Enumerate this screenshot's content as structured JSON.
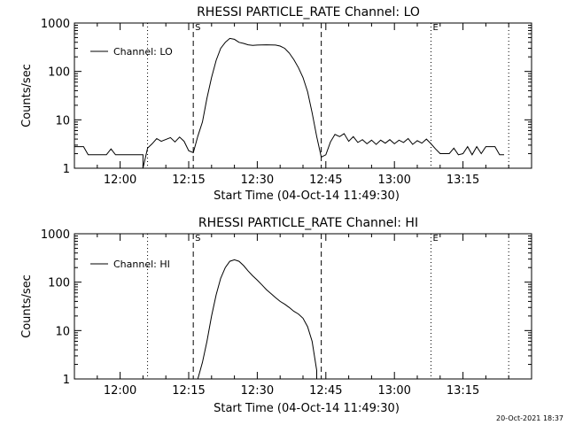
{
  "chart_data": [
    {
      "type": "line",
      "title": "RHESSI PARTICLE_RATE Channel: LO",
      "xlabel": "Start Time (04-Oct-14 11:49:30)",
      "ylabel": "Counts/sec",
      "y_scale": "log",
      "ylim": [
        1,
        1000
      ],
      "xlim": [
        "11:50",
        "13:30"
      ],
      "x_ticks": [
        "12:00",
        "12:15",
        "12:30",
        "12:45",
        "13:00",
        "13:15"
      ],
      "y_ticks": [
        "1",
        "10",
        "100",
        "1000"
      ],
      "legend": "Channel: LO",
      "legend_position": "upper-left",
      "markers": [
        {
          "time": "12:06",
          "style": "dotted",
          "label": ""
        },
        {
          "time": "12:16",
          "style": "dashed",
          "label": "S"
        },
        {
          "time": "12:44",
          "style": "dashed",
          "label": ""
        },
        {
          "time": "13:08",
          "style": "dotted",
          "label": "E"
        },
        {
          "time": "13:25",
          "style": "dotted",
          "label": ""
        }
      ],
      "series": [
        {
          "name": "Channel: LO",
          "points": [
            [
              "11:50",
              2.8
            ],
            [
              "11:52",
              2.8
            ],
            [
              "11:53",
              1.9
            ],
            [
              "11:54",
              1.9
            ],
            [
              "11:57",
              1.9
            ],
            [
              "11:58",
              2.5
            ],
            [
              "11:59",
              1.9
            ],
            [
              "12:05",
              1.9
            ],
            [
              "12:05",
              0.9
            ],
            [
              "12:06",
              2.6
            ],
            [
              "12:07",
              3.2
            ],
            [
              "12:08",
              4.1
            ],
            [
              "12:09",
              3.6
            ],
            [
              "12:11",
              4.3
            ],
            [
              "12:12",
              3.5
            ],
            [
              "12:13",
              4.4
            ],
            [
              "12:14",
              3.6
            ],
            [
              "12:15",
              2.3
            ],
            [
              "12:16",
              2.1
            ],
            [
              "12:17",
              4.6
            ],
            [
              "12:18",
              9
            ],
            [
              "12:19",
              28
            ],
            [
              "12:20",
              75
            ],
            [
              "12:21",
              170
            ],
            [
              "12:22",
              300
            ],
            [
              "12:23",
              400
            ],
            [
              "12:24",
              480
            ],
            [
              "12:25",
              460
            ],
            [
              "12:26",
              400
            ],
            [
              "12:27",
              380
            ],
            [
              "12:28",
              355
            ],
            [
              "12:29",
              345
            ],
            [
              "12:30",
              350
            ],
            [
              "12:32",
              355
            ],
            [
              "12:34",
              350
            ],
            [
              "12:35",
              335
            ],
            [
              "12:36",
              300
            ],
            [
              "12:37",
              240
            ],
            [
              "12:38",
              175
            ],
            [
              "12:39",
              120
            ],
            [
              "12:40",
              75
            ],
            [
              "12:41",
              38
            ],
            [
              "12:42",
              14
            ],
            [
              "12:43",
              4.5
            ],
            [
              "12:44",
              1.7
            ],
            [
              "12:45",
              1.9
            ],
            [
              "12:46",
              3.5
            ],
            [
              "12:47",
              5
            ],
            [
              "12:48",
              4.5
            ],
            [
              "12:49",
              5.2
            ],
            [
              "12:50",
              3.6
            ],
            [
              "12:51",
              4.5
            ],
            [
              "12:52",
              3.4
            ],
            [
              "12:53",
              3.9
            ],
            [
              "12:54",
              3.2
            ],
            [
              "12:55",
              3.8
            ],
            [
              "12:56",
              3.1
            ],
            [
              "12:57",
              3.8
            ],
            [
              "12:58",
              3.3
            ],
            [
              "12:59",
              3.9
            ],
            [
              "13:00",
              3.2
            ],
            [
              "13:01",
              3.8
            ],
            [
              "13:02",
              3.4
            ],
            [
              "13:03",
              4.1
            ],
            [
              "13:04",
              3.1
            ],
            [
              "13:05",
              3.7
            ],
            [
              "13:06",
              3.3
            ],
            [
              "13:07",
              4.0
            ],
            [
              "13:08",
              3.2
            ],
            [
              "13:09",
              2.5
            ],
            [
              "13:10",
              2.0
            ],
            [
              "13:12",
              2.0
            ],
            [
              "13:13",
              2.6
            ],
            [
              "13:14",
              1.9
            ],
            [
              "13:15",
              2.0
            ],
            [
              "13:16",
              2.8
            ],
            [
              "13:17",
              1.9
            ],
            [
              "13:18",
              2.8
            ],
            [
              "13:19",
              2.0
            ],
            [
              "13:20",
              2.8
            ],
            [
              "13:22",
              2.8
            ],
            [
              "13:23",
              1.9
            ],
            [
              "13:24",
              1.9
            ]
          ]
        }
      ]
    },
    {
      "type": "line",
      "title": "RHESSI PARTICLE_RATE Channel: HI",
      "xlabel": "Start Time (04-Oct-14 11:49:30)",
      "ylabel": "Counts/sec",
      "y_scale": "log",
      "ylim": [
        1,
        1000
      ],
      "xlim": [
        "11:50",
        "13:30"
      ],
      "x_ticks": [
        "12:00",
        "12:15",
        "12:30",
        "12:45",
        "13:00",
        "13:15"
      ],
      "y_ticks": [
        "1",
        "10",
        "100",
        "1000"
      ],
      "legend": "Channel: HI",
      "legend_position": "upper-left",
      "markers": [
        {
          "time": "12:06",
          "style": "dotted",
          "label": ""
        },
        {
          "time": "12:16",
          "style": "dashed",
          "label": "S"
        },
        {
          "time": "12:44",
          "style": "dashed",
          "label": ""
        },
        {
          "time": "13:08",
          "style": "dotted",
          "label": "E"
        },
        {
          "time": "13:25",
          "style": "dotted",
          "label": ""
        }
      ],
      "series": [
        {
          "name": "Channel: HI",
          "points": [
            [
              "12:17",
              1
            ],
            [
              "12:18",
              2.2
            ],
            [
              "12:19",
              6
            ],
            [
              "12:20",
              20
            ],
            [
              "12:21",
              55
            ],
            [
              "12:22",
              120
            ],
            [
              "12:23",
              200
            ],
            [
              "12:24",
              270
            ],
            [
              "12:25",
              290
            ],
            [
              "12:26",
              270
            ],
            [
              "12:27",
              220
            ],
            [
              "12:28",
              170
            ],
            [
              "12:29",
              135
            ],
            [
              "12:30",
              110
            ],
            [
              "12:31",
              88
            ],
            [
              "12:32",
              70
            ],
            [
              "12:33",
              58
            ],
            [
              "12:34",
              48
            ],
            [
              "12:35",
              40
            ],
            [
              "12:36",
              35
            ],
            [
              "12:37",
              30
            ],
            [
              "12:38",
              25
            ],
            [
              "12:39",
              22
            ],
            [
              "12:40",
              18
            ],
            [
              "12:41",
              12
            ],
            [
              "12:42",
              6
            ],
            [
              "12:43",
              1.5
            ],
            [
              "12:43",
              1
            ]
          ]
        }
      ]
    }
  ],
  "footer": {
    "timestamp": "20-Oct-2021 18:37"
  }
}
